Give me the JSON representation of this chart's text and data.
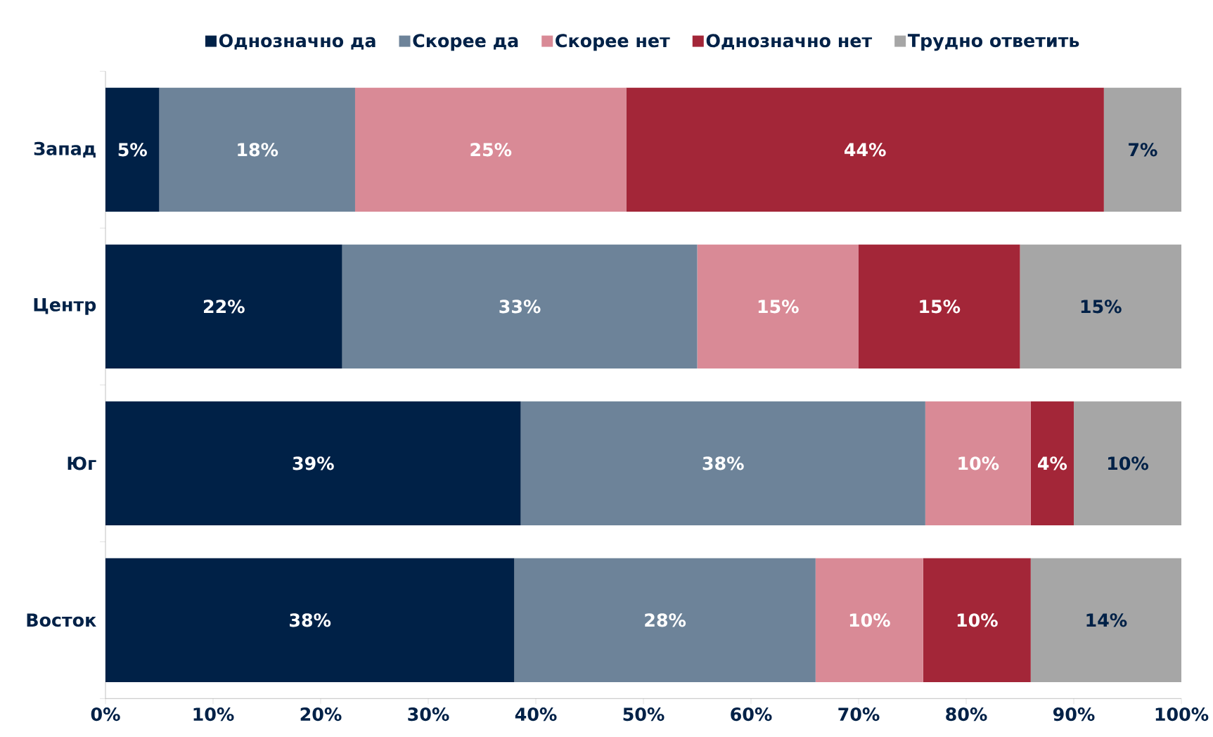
{
  "chart_data": {
    "type": "bar",
    "orientation": "horizontal",
    "stacked": true,
    "categories": [
      "Запад",
      "Центр",
      "Юг",
      "Восток"
    ],
    "series": [
      {
        "name": "Однозначно да",
        "color": "#002147",
        "values": [
          5.0,
          22,
          38.6,
          38
        ],
        "value_labels": [
          "5%",
          "22%",
          "39%",
          "38%"
        ]
      },
      {
        "name": "Скорее да",
        "color": "#6d8399",
        "values": [
          18.2,
          33,
          37.6,
          28
        ],
        "value_labels": [
          "18%",
          "33%",
          "38%",
          "28%"
        ]
      },
      {
        "name": "Скорее нет",
        "color": "#d98a96",
        "values": [
          25.2,
          15,
          9.8,
          10
        ],
        "value_labels": [
          "25%",
          "15%",
          "10%",
          "10%"
        ]
      },
      {
        "name": "Однозначно нет",
        "color": "#a32638",
        "values": [
          44.4,
          15,
          4.0,
          10
        ],
        "value_labels": [
          "44%",
          "15%",
          "4%",
          "10%"
        ]
      },
      {
        "name": "Трудно ответить",
        "color": "#a6a6a6",
        "values": [
          7.2,
          15,
          10.0,
          14
        ],
        "value_labels": [
          "7%",
          "15%",
          "10%",
          "14%"
        ]
      }
    ],
    "xlim": [
      0,
      100
    ],
    "xticks": [
      {
        "value": 0,
        "label": "0%"
      },
      {
        "value": 10,
        "label": "10%"
      },
      {
        "value": 20,
        "label": "20%"
      },
      {
        "value": 30,
        "label": "30%"
      },
      {
        "value": 40,
        "label": "40%"
      },
      {
        "value": 50,
        "label": "50%"
      },
      {
        "value": 60,
        "label": "60%"
      },
      {
        "value": 70,
        "label": "70%"
      },
      {
        "value": 80,
        "label": "80%"
      },
      {
        "value": 90,
        "label": "90%"
      },
      {
        "value": 100,
        "label": "100%"
      }
    ],
    "legend": "top",
    "grid": false
  }
}
